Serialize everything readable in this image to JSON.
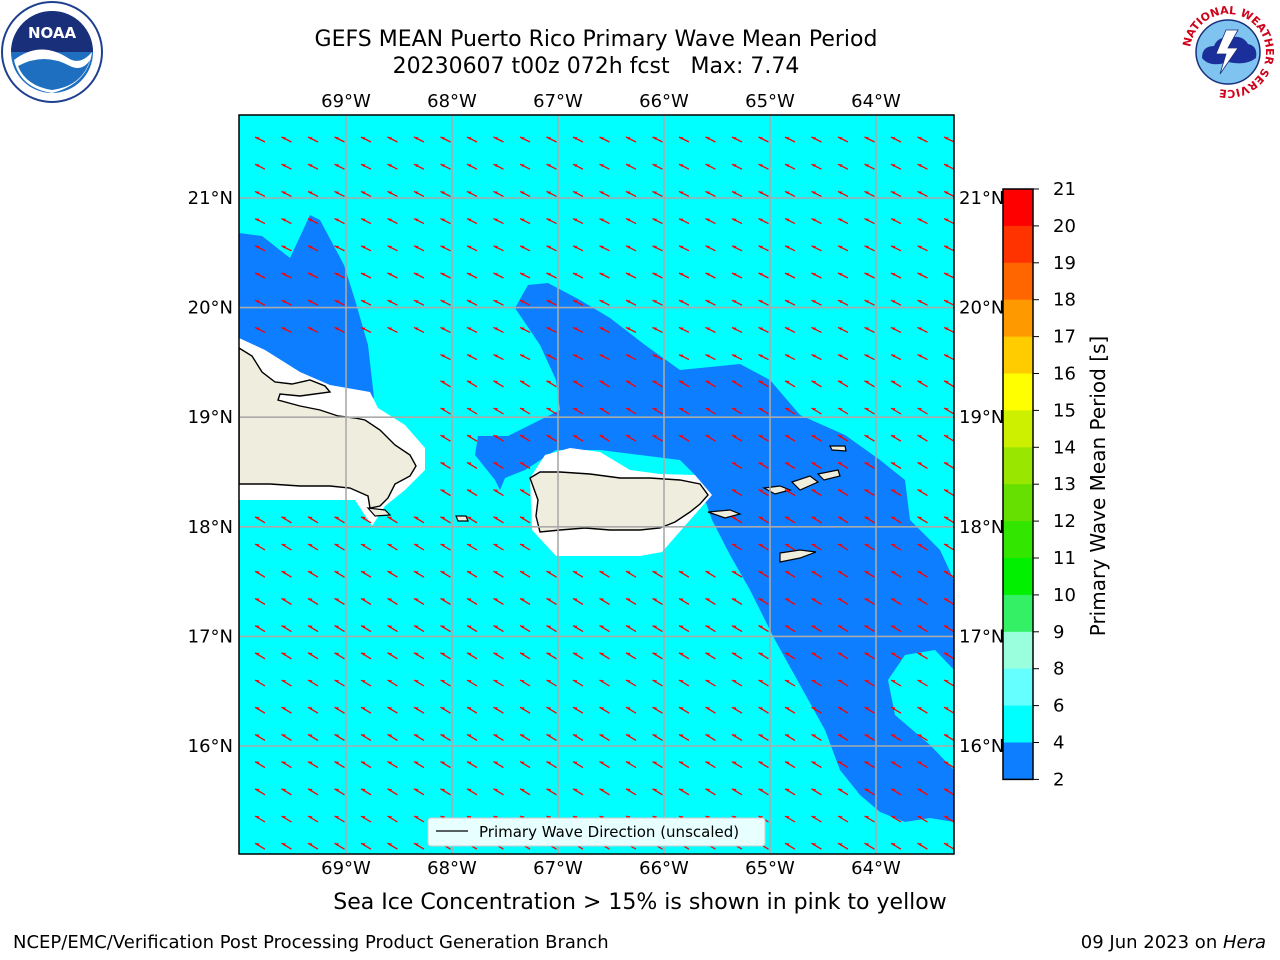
{
  "title": {
    "line1": "GEFS MEAN Puerto Rico Primary Wave Mean Period",
    "line2": "20230607 t00z 072h fcst   Max: 7.74"
  },
  "map": {
    "lon_labels": [
      "69°W",
      "68°W",
      "67°W",
      "66°W",
      "65°W",
      "64°W"
    ],
    "lat_labels": [
      "21°N",
      "20°N",
      "19°N",
      "18°N",
      "17°N",
      "16°N"
    ],
    "lon_values": [
      -69,
      -68,
      -67,
      -66,
      -65,
      -64
    ],
    "lat_values": [
      21,
      20,
      19,
      18,
      17,
      16
    ],
    "legend_label": "Primary Wave Direction (unscaled)",
    "ocean_color": "#00ffff",
    "band_color": "#0c7eff",
    "land_color": "#efedde",
    "arrow_color": "#ff0000"
  },
  "colorbar": {
    "label": "Primary Wave Mean Period [s]",
    "ticks": [
      "21",
      "20",
      "19",
      "18",
      "17",
      "16",
      "15",
      "14",
      "13",
      "12",
      "11",
      "10",
      "9",
      "8",
      "6",
      "4",
      "2"
    ],
    "colors": [
      "#ff0000",
      "#ff3300",
      "#ff6600",
      "#ff9900",
      "#ffcc00",
      "#ffff00",
      "#ccf000",
      "#99e600",
      "#66e000",
      "#33e600",
      "#00f000",
      "#33f064",
      "#99ffdd",
      "#66ffff",
      "#00ffff",
      "#0c7eff",
      "#0000ff"
    ]
  },
  "bottom_note": "Sea Ice Concentration > 15% is shown in pink to yellow",
  "footer": {
    "credit": "NCEP/EMC/Verification Post Processing Product Generation Branch",
    "date": "09 Jun 2023 on ",
    "host": "Hera"
  },
  "logos": {
    "noaa": "NOAA",
    "nws": "NATIONAL WEATHER SERVICE"
  }
}
